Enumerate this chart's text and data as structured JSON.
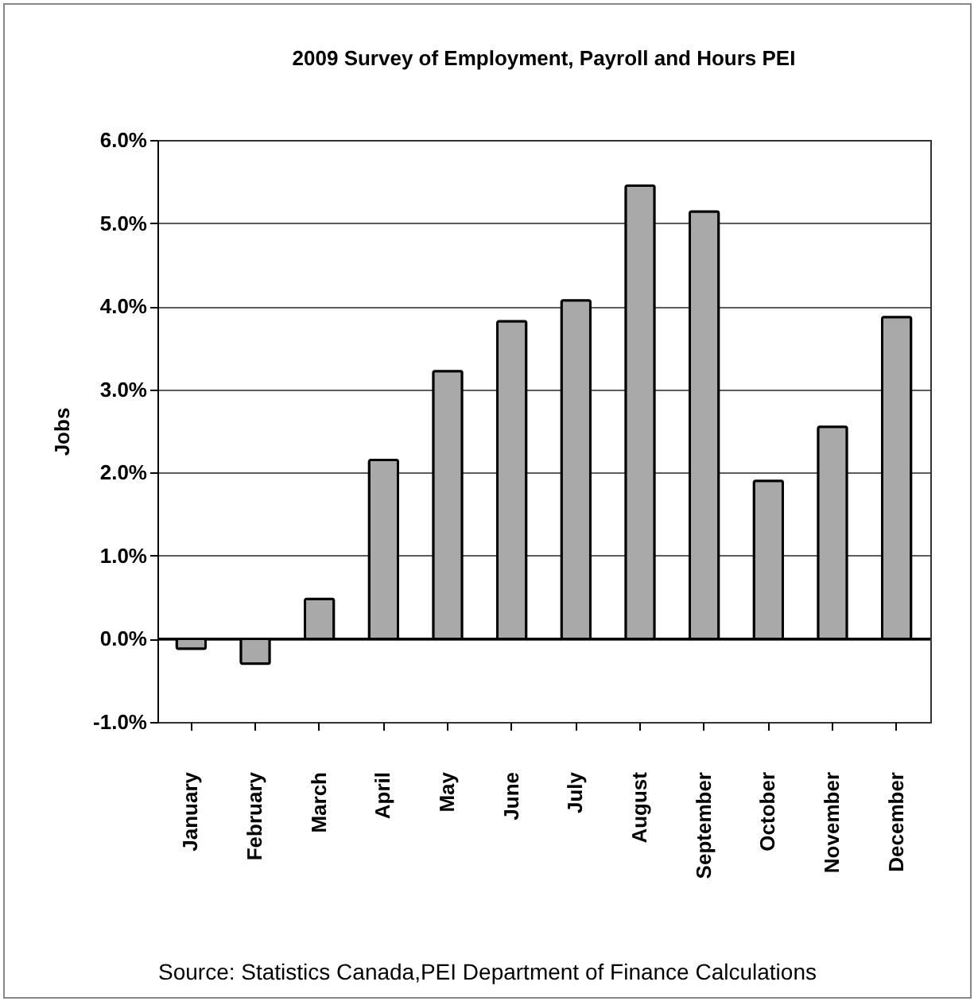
{
  "chart_data": {
    "type": "bar",
    "title": "2009 Survey of Employment, Payroll and Hours PEI",
    "ylabel": "Jobs",
    "categories": [
      "January",
      "February",
      "March",
      "April",
      "May",
      "June",
      "July",
      "August",
      "September",
      "October",
      "November",
      "December"
    ],
    "values": [
      -0.12,
      -0.3,
      0.48,
      2.15,
      3.22,
      3.82,
      4.07,
      5.45,
      5.14,
      1.9,
      2.55,
      3.87
    ],
    "color": "#a9a9a9",
    "ylim": [
      -1,
      6
    ],
    "yticks": [
      {
        "value": -1,
        "label": "-1.0%"
      },
      {
        "value": 0,
        "label": "0.0%"
      },
      {
        "value": 1,
        "label": "1.0%"
      },
      {
        "value": 2,
        "label": "2.0%"
      },
      {
        "value": 3,
        "label": "3.0%"
      },
      {
        "value": 4,
        "label": "4.0%"
      },
      {
        "value": 5,
        "label": "5.0%"
      },
      {
        "value": 6,
        "label": "6.0%"
      }
    ],
    "grid": "y",
    "annotations": [
      "Source: Statistics Canada,PEI Department of Finance Calculations"
    ]
  }
}
